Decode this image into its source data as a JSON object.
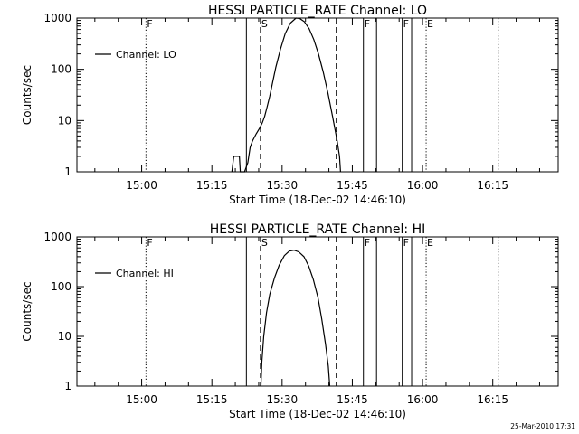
{
  "footer_timestamp": "25-Mar-2010 17:31",
  "chart_data": [
    {
      "type": "line",
      "title": "HESSI PARTICLE_RATE Channel: LO",
      "xlabel": "Start Time (18-Dec-02 14:46:10)",
      "ylabel": "Counts/sec",
      "x_unit": "minutes after 14:46:10",
      "xlim": [
        0,
        102.8
      ],
      "ylim": [
        1,
        1000
      ],
      "yscale": "log",
      "grid": false,
      "legend_position": "top-left",
      "x_ticks": [
        {
          "x": 13.83,
          "label": "15:00"
        },
        {
          "x": 28.83,
          "label": "15:15"
        },
        {
          "x": 43.83,
          "label": "15:30"
        },
        {
          "x": 58.83,
          "label": "15:45"
        },
        {
          "x": 73.83,
          "label": "16:00"
        },
        {
          "x": 88.83,
          "label": "16:15"
        }
      ],
      "y_ticks": [
        {
          "y": 1,
          "label": "1"
        },
        {
          "y": 10,
          "label": "10"
        },
        {
          "y": 100,
          "label": "100"
        },
        {
          "y": 1000,
          "label": "1000"
        }
      ],
      "series": [
        {
          "name": "Channel: LO",
          "points": [
            [
              33.1,
              1
            ],
            [
              33.5,
              2
            ],
            [
              34.7,
              2
            ],
            [
              34.9,
              1
            ],
            [
              35.8,
              1
            ],
            [
              36.5,
              1.5
            ],
            [
              37.0,
              3
            ],
            [
              37.5,
              4
            ],
            [
              38.3,
              5.5
            ],
            [
              39.0,
              7
            ],
            [
              39.6,
              9
            ],
            [
              40.1,
              12
            ],
            [
              40.6,
              18
            ],
            [
              41.2,
              30
            ],
            [
              41.8,
              55
            ],
            [
              42.5,
              110
            ],
            [
              43.5,
              250
            ],
            [
              44.5,
              500
            ],
            [
              45.6,
              800
            ],
            [
              46.8,
              1000
            ],
            [
              47.6,
              980
            ],
            [
              48.6,
              850
            ],
            [
              49.6,
              620
            ],
            [
              50.6,
              380
            ],
            [
              51.6,
              200
            ],
            [
              52.6,
              90
            ],
            [
              53.6,
              35
            ],
            [
              54.6,
              12
            ],
            [
              55.6,
              4
            ],
            [
              56.1,
              2
            ],
            [
              56.3,
              1
            ]
          ]
        }
      ],
      "markers": [
        {
          "x": 14.75,
          "style": "dotted",
          "label": "F"
        },
        {
          "x": 36.2,
          "style": "solid",
          "label": ""
        },
        {
          "x": 39.2,
          "style": "dashed",
          "label": "S"
        },
        {
          "x": 55.4,
          "style": "dashed",
          "label": ""
        },
        {
          "x": 61.2,
          "style": "solid",
          "label": "F"
        },
        {
          "x": 64.0,
          "style": "solid",
          "label": ""
        },
        {
          "x": 69.5,
          "style": "solid",
          "label": "F"
        },
        {
          "x": 71.5,
          "style": "solid",
          "label": ""
        },
        {
          "x": 74.6,
          "style": "dotted",
          "label": "E"
        },
        {
          "x": 90.0,
          "style": "dotted",
          "label": ""
        }
      ]
    },
    {
      "type": "line",
      "title": "HESSI PARTICLE_RATE Channel: HI",
      "xlabel": "Start Time (18-Dec-02 14:46:10)",
      "ylabel": "Counts/sec",
      "x_unit": "minutes after 14:46:10",
      "xlim": [
        0,
        102.8
      ],
      "ylim": [
        1,
        1000
      ],
      "yscale": "log",
      "grid": false,
      "legend_position": "top-left",
      "x_ticks": [
        {
          "x": 13.83,
          "label": "15:00"
        },
        {
          "x": 28.83,
          "label": "15:15"
        },
        {
          "x": 43.83,
          "label": "15:30"
        },
        {
          "x": 58.83,
          "label": "15:45"
        },
        {
          "x": 73.83,
          "label": "16:00"
        },
        {
          "x": 88.83,
          "label": "16:15"
        }
      ],
      "y_ticks": [
        {
          "y": 1,
          "label": "1"
        },
        {
          "y": 10,
          "label": "10"
        },
        {
          "y": 100,
          "label": "100"
        },
        {
          "y": 1000,
          "label": "1000"
        }
      ],
      "series": [
        {
          "name": "Channel: HI",
          "points": [
            [
              39.3,
              1
            ],
            [
              39.5,
              3
            ],
            [
              39.9,
              10
            ],
            [
              40.5,
              30
            ],
            [
              41.2,
              70
            ],
            [
              42.2,
              150
            ],
            [
              43.2,
              270
            ],
            [
              44.3,
              420
            ],
            [
              45.4,
              520
            ],
            [
              46.4,
              540
            ],
            [
              47.4,
              500
            ],
            [
              48.5,
              400
            ],
            [
              49.5,
              260
            ],
            [
              50.5,
              140
            ],
            [
              51.5,
              60
            ],
            [
              52.3,
              22
            ],
            [
              53.1,
              7
            ],
            [
              53.7,
              2.5
            ],
            [
              54.0,
              1
            ]
          ]
        }
      ],
      "markers": [
        {
          "x": 14.75,
          "style": "dotted",
          "label": "F"
        },
        {
          "x": 36.2,
          "style": "solid",
          "label": ""
        },
        {
          "x": 39.2,
          "style": "dashed",
          "label": "S"
        },
        {
          "x": 55.4,
          "style": "dashed",
          "label": ""
        },
        {
          "x": 61.2,
          "style": "solid",
          "label": "F"
        },
        {
          "x": 64.0,
          "style": "solid",
          "label": ""
        },
        {
          "x": 69.5,
          "style": "solid",
          "label": "F"
        },
        {
          "x": 71.5,
          "style": "solid",
          "label": ""
        },
        {
          "x": 74.6,
          "style": "dotted",
          "label": "E"
        },
        {
          "x": 90.0,
          "style": "dotted",
          "label": ""
        }
      ]
    }
  ]
}
